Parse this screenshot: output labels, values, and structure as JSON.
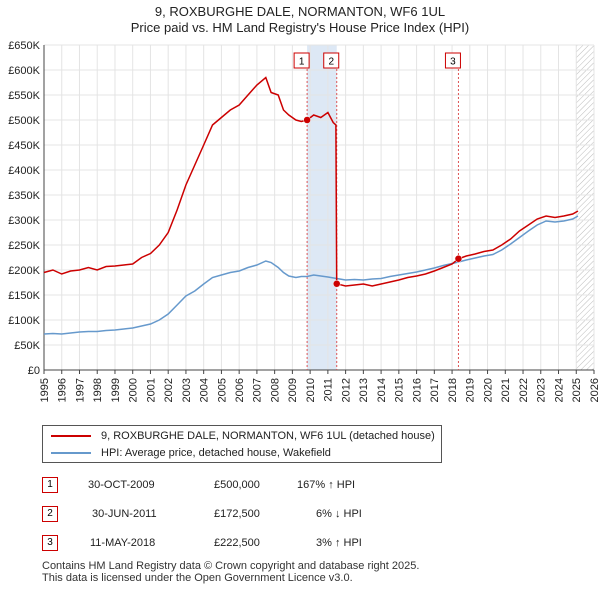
{
  "title_line1": "9, ROXBURGHE DALE, NORMANTON, WF6 1UL",
  "title_line2": "Price paid vs. HM Land Registry's House Price Index (HPI)",
  "legend": {
    "property": "9, ROXBURGHE DALE, NORMANTON, WF6 1UL (detached house)",
    "hpi": "HPI: Average price, detached house, Wakefield"
  },
  "colors": {
    "property": "#cc0000",
    "hpi": "#6699cc",
    "shade": "#dde8f5",
    "grid": "#e4e4e4",
    "marker_border": "#cc0000"
  },
  "sales": [
    {
      "num": "1",
      "date": "30-OCT-2009",
      "price": "£500,000",
      "hpi_change": "167% ↑ HPI"
    },
    {
      "num": "2",
      "date": "30-JUN-2011",
      "price": "£172,500",
      "hpi_change": "6% ↓ HPI"
    },
    {
      "num": "3",
      "date": "11-MAY-2018",
      "price": "£222,500",
      "hpi_change": "3% ↑ HPI"
    }
  ],
  "footer_line1": "Contains HM Land Registry data © Crown copyright and database right 2025.",
  "footer_line2": "This data is licensed under the Open Government Licence v3.0.",
  "chart_data": {
    "type": "line",
    "title": "Price paid vs. HM Land Registry's House Price Index (HPI)",
    "xlim": [
      1995,
      2026
    ],
    "ylim": [
      0,
      650000
    ],
    "x_ticks": [
      "1995",
      "1996",
      "1997",
      "1998",
      "1999",
      "2000",
      "2001",
      "2002",
      "2003",
      "2004",
      "2005",
      "2006",
      "2007",
      "2008",
      "2009",
      "2010",
      "2011",
      "2012",
      "2013",
      "2014",
      "2015",
      "2016",
      "2017",
      "2018",
      "2019",
      "2020",
      "2021",
      "2022",
      "2023",
      "2024",
      "2025",
      "2026"
    ],
    "y_ticks": [
      {
        "value": 0,
        "label": "£0"
      },
      {
        "value": 50000,
        "label": "£50K"
      },
      {
        "value": 100000,
        "label": "£100K"
      },
      {
        "value": 150000,
        "label": "£150K"
      },
      {
        "value": 200000,
        "label": "£200K"
      },
      {
        "value": 250000,
        "label": "£250K"
      },
      {
        "value": 300000,
        "label": "£300K"
      },
      {
        "value": 350000,
        "label": "£350K"
      },
      {
        "value": 400000,
        "label": "£400K"
      },
      {
        "value": 450000,
        "label": "£450K"
      },
      {
        "value": 500000,
        "label": "£500K"
      },
      {
        "value": 550000,
        "label": "£550K"
      },
      {
        "value": 600000,
        "label": "£600K"
      },
      {
        "value": 650000,
        "label": "£650K"
      }
    ],
    "shaded_period": [
      2009.83,
      2011.5
    ],
    "hatched_future_from": 2025.0,
    "series": [
      {
        "name": "9, ROXBURGHE DALE, NORMANTON, WF6 1UL (detached house)",
        "color": "#cc0000",
        "points": [
          [
            1995.0,
            195000
          ],
          [
            1995.5,
            200000
          ],
          [
            1996.0,
            192000
          ],
          [
            1996.5,
            198000
          ],
          [
            1997.0,
            200000
          ],
          [
            1997.5,
            205000
          ],
          [
            1998.0,
            200000
          ],
          [
            1998.5,
            207000
          ],
          [
            1999.0,
            208000
          ],
          [
            1999.5,
            210000
          ],
          [
            2000.0,
            212000
          ],
          [
            2000.5,
            225000
          ],
          [
            2001.0,
            233000
          ],
          [
            2001.5,
            250000
          ],
          [
            2002.0,
            275000
          ],
          [
            2002.5,
            320000
          ],
          [
            2003.0,
            370000
          ],
          [
            2003.5,
            410000
          ],
          [
            2004.0,
            450000
          ],
          [
            2004.5,
            490000
          ],
          [
            2005.0,
            505000
          ],
          [
            2005.5,
            520000
          ],
          [
            2006.0,
            530000
          ],
          [
            2006.5,
            550000
          ],
          [
            2007.0,
            570000
          ],
          [
            2007.5,
            585000
          ],
          [
            2007.8,
            555000
          ],
          [
            2008.2,
            550000
          ],
          [
            2008.5,
            520000
          ],
          [
            2008.8,
            510000
          ],
          [
            2009.2,
            500000
          ],
          [
            2009.5,
            497000
          ],
          [
            2009.83,
            500000
          ],
          [
            2010.2,
            510000
          ],
          [
            2010.6,
            505000
          ],
          [
            2011.0,
            515000
          ],
          [
            2011.3,
            495000
          ],
          [
            2011.45,
            490000
          ],
          [
            2011.5,
            172500
          ],
          [
            2012.0,
            168000
          ],
          [
            2012.5,
            170000
          ],
          [
            2013.0,
            172000
          ],
          [
            2013.5,
            168000
          ],
          [
            2014.0,
            172000
          ],
          [
            2014.5,
            176000
          ],
          [
            2015.0,
            180000
          ],
          [
            2015.5,
            185000
          ],
          [
            2016.0,
            188000
          ],
          [
            2016.5,
            192000
          ],
          [
            2017.0,
            198000
          ],
          [
            2017.5,
            205000
          ],
          [
            2018.0,
            212000
          ],
          [
            2018.36,
            222500
          ],
          [
            2018.8,
            228000
          ],
          [
            2019.3,
            232000
          ],
          [
            2019.8,
            237000
          ],
          [
            2020.3,
            240000
          ],
          [
            2020.8,
            250000
          ],
          [
            2021.3,
            262000
          ],
          [
            2021.8,
            278000
          ],
          [
            2022.3,
            290000
          ],
          [
            2022.8,
            302000
          ],
          [
            2023.3,
            308000
          ],
          [
            2023.8,
            305000
          ],
          [
            2024.3,
            308000
          ],
          [
            2024.8,
            312000
          ],
          [
            2025.1,
            318000
          ]
        ]
      },
      {
        "name": "HPI: Average price, detached house, Wakefield",
        "color": "#6699cc",
        "points": [
          [
            1995.0,
            72000
          ],
          [
            1995.5,
            73000
          ],
          [
            1996.0,
            72000
          ],
          [
            1996.5,
            74000
          ],
          [
            1997.0,
            76000
          ],
          [
            1997.5,
            77000
          ],
          [
            1998.0,
            77000
          ],
          [
            1998.5,
            79000
          ],
          [
            1999.0,
            80000
          ],
          [
            1999.5,
            82000
          ],
          [
            2000.0,
            84000
          ],
          [
            2000.5,
            88000
          ],
          [
            2001.0,
            92000
          ],
          [
            2001.5,
            100000
          ],
          [
            2002.0,
            112000
          ],
          [
            2002.5,
            130000
          ],
          [
            2003.0,
            148000
          ],
          [
            2003.5,
            158000
          ],
          [
            2004.0,
            172000
          ],
          [
            2004.5,
            185000
          ],
          [
            2005.0,
            190000
          ],
          [
            2005.5,
            195000
          ],
          [
            2006.0,
            198000
          ],
          [
            2006.5,
            205000
          ],
          [
            2007.0,
            210000
          ],
          [
            2007.5,
            218000
          ],
          [
            2007.8,
            215000
          ],
          [
            2008.2,
            205000
          ],
          [
            2008.5,
            195000
          ],
          [
            2008.8,
            188000
          ],
          [
            2009.2,
            185000
          ],
          [
            2009.5,
            187000
          ],
          [
            2009.83,
            187000
          ],
          [
            2010.2,
            190000
          ],
          [
            2010.6,
            188000
          ],
          [
            2011.0,
            186000
          ],
          [
            2011.5,
            183000
          ],
          [
            2012.0,
            180000
          ],
          [
            2012.5,
            181000
          ],
          [
            2013.0,
            180000
          ],
          [
            2013.5,
            182000
          ],
          [
            2014.0,
            183000
          ],
          [
            2014.5,
            187000
          ],
          [
            2015.0,
            190000
          ],
          [
            2015.5,
            193000
          ],
          [
            2016.0,
            196000
          ],
          [
            2016.5,
            200000
          ],
          [
            2017.0,
            204000
          ],
          [
            2017.5,
            209000
          ],
          [
            2018.0,
            213000
          ],
          [
            2018.36,
            216000
          ],
          [
            2018.8,
            220000
          ],
          [
            2019.3,
            224000
          ],
          [
            2019.8,
            228000
          ],
          [
            2020.3,
            231000
          ],
          [
            2020.8,
            240000
          ],
          [
            2021.3,
            252000
          ],
          [
            2021.8,
            265000
          ],
          [
            2022.3,
            278000
          ],
          [
            2022.8,
            290000
          ],
          [
            2023.3,
            298000
          ],
          [
            2023.8,
            296000
          ],
          [
            2024.3,
            298000
          ],
          [
            2024.8,
            302000
          ],
          [
            2025.1,
            308000
          ]
        ]
      }
    ],
    "markers": [
      {
        "label": "1",
        "x": 2009.83,
        "y": 500000
      },
      {
        "label": "2",
        "x": 2011.5,
        "y": 172500
      },
      {
        "label": "3",
        "x": 2018.36,
        "y": 222500
      }
    ]
  }
}
